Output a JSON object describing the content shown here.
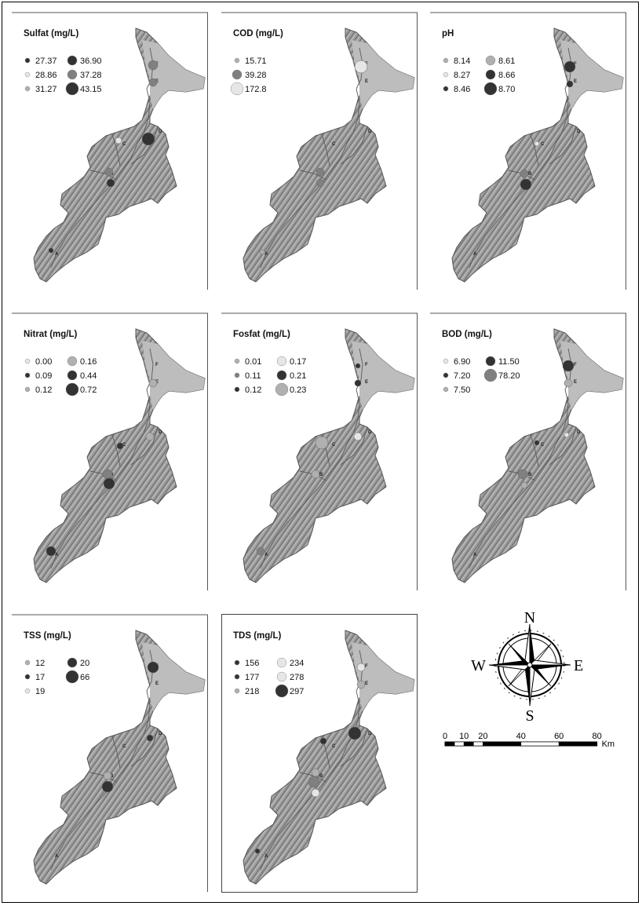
{
  "colors": {
    "dark": "#333333",
    "mid": "#808080",
    "light": "#b0b0b0",
    "pale": "#e6e6e6"
  },
  "panels": [
    {
      "title": "Sulfat (mg/L)",
      "legend": [
        {
          "value": "27.37",
          "shade": "dark",
          "size": "s"
        },
        {
          "value": "36.90",
          "shade": "dark",
          "size": "m"
        },
        {
          "value": "28.86",
          "shade": "pale",
          "size": "s"
        },
        {
          "value": "37.28",
          "shade": "mid",
          "size": "m"
        },
        {
          "value": "31.27",
          "shade": "light",
          "size": "s"
        },
        {
          "value": "43.15",
          "shade": "dark",
          "size": "l"
        }
      ]
    },
    {
      "title": "COD (mg/L)",
      "legend": [
        {
          "value": "15.71",
          "shade": "light",
          "size": "s"
        },
        {
          "value": "39.28",
          "shade": "mid",
          "size": "m"
        },
        {
          "value": "172.8",
          "shade": "pale",
          "size": "l"
        }
      ]
    },
    {
      "title": "pH",
      "legend": [
        {
          "value": "8.14",
          "shade": "light",
          "size": "s"
        },
        {
          "value": "8.61",
          "shade": "light",
          "size": "m"
        },
        {
          "value": "8.27",
          "shade": "pale",
          "size": "s"
        },
        {
          "value": "8.66",
          "shade": "dark",
          "size": "m"
        },
        {
          "value": "8.46",
          "shade": "dark",
          "size": "s"
        },
        {
          "value": "8.70",
          "shade": "dark",
          "size": "l"
        }
      ]
    },
    {
      "title": "Nitrat (mg/L)",
      "legend": [
        {
          "value": "0.00",
          "shade": "pale",
          "size": "s"
        },
        {
          "value": "0.16",
          "shade": "light",
          "size": "m"
        },
        {
          "value": "0.09",
          "shade": "dark",
          "size": "s"
        },
        {
          "value": "0.44",
          "shade": "dark",
          "size": "m"
        },
        {
          "value": "0.12",
          "shade": "light",
          "size": "s"
        },
        {
          "value": "0.72",
          "shade": "dark",
          "size": "l"
        }
      ]
    },
    {
      "title": "Fosfat (mg/L)",
      "legend": [
        {
          "value": "0.01",
          "shade": "light",
          "size": "s"
        },
        {
          "value": "0.17",
          "shade": "pale",
          "size": "m"
        },
        {
          "value": "0.11",
          "shade": "mid",
          "size": "s"
        },
        {
          "value": "0.21",
          "shade": "dark",
          "size": "m"
        },
        {
          "value": "0.12",
          "shade": "dark",
          "size": "s"
        },
        {
          "value": "0.23",
          "shade": "light",
          "size": "l"
        }
      ]
    },
    {
      "title": "BOD (mg/L)",
      "legend": [
        {
          "value": "6.90",
          "shade": "pale",
          "size": "s"
        },
        {
          "value": "11.50",
          "shade": "dark",
          "size": "m"
        },
        {
          "value": "7.20",
          "shade": "dark",
          "size": "s"
        },
        {
          "value": "78.20",
          "shade": "mid",
          "size": "l"
        },
        {
          "value": "7.50",
          "shade": "light",
          "size": "s"
        }
      ]
    },
    {
      "title": "TSS (mg/L)",
      "legend": [
        {
          "value": "12",
          "shade": "light",
          "size": "s"
        },
        {
          "value": "20",
          "shade": "dark",
          "size": "m"
        },
        {
          "value": "17",
          "shade": "dark",
          "size": "s"
        },
        {
          "value": "66",
          "shade": "dark",
          "size": "l"
        },
        {
          "value": "19",
          "shade": "pale",
          "size": "s"
        }
      ]
    },
    {
      "title": "TDS (mg/L)",
      "legend": [
        {
          "value": "156",
          "shade": "dark",
          "size": "s"
        },
        {
          "value": "234",
          "shade": "pale",
          "size": "m"
        },
        {
          "value": "177",
          "shade": "dark",
          "size": "s"
        },
        {
          "value": "278",
          "shade": "pale",
          "size": "m"
        },
        {
          "value": "218",
          "shade": "light",
          "size": "s"
        },
        {
          "value": "297",
          "shade": "dark",
          "size": "l"
        }
      ]
    }
  ],
  "site_labels": [
    "A",
    "B",
    "C",
    "D",
    "E",
    "F"
  ],
  "compass": {
    "n": "N",
    "s": "S",
    "e": "E",
    "w": "W"
  },
  "scale_bar": {
    "ticks": [
      "0",
      "10",
      "20",
      "40",
      "60",
      "80"
    ],
    "values": [
      0,
      10,
      20,
      40,
      60,
      80
    ],
    "unit": "Km"
  }
}
